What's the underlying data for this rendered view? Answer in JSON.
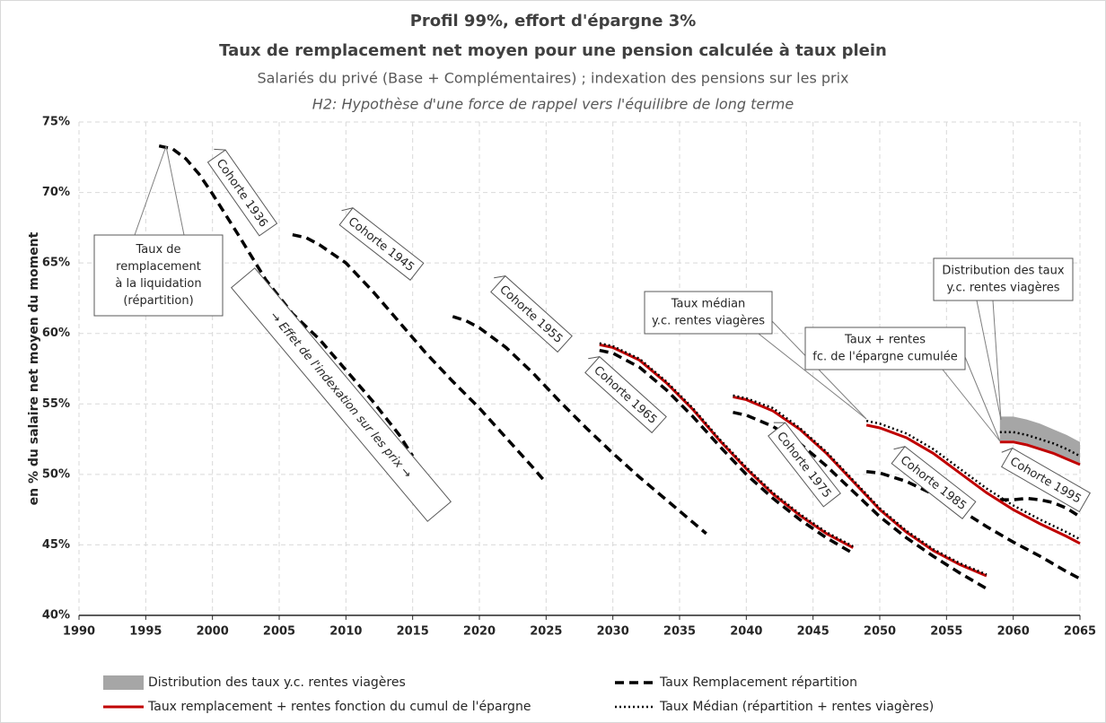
{
  "chart_data": {
    "type": "line",
    "title": "Profil 99%, effort d'épargne 3%",
    "subtitle": "Taux de remplacement net moyen pour une pension calculée à taux plein",
    "subtitle2": "Salariés du privé (Base + Complémentaires) ; indexation des pensions sur les prix",
    "subtitle3": "H2: Hypothèse d'une force de rappel vers l'équilibre de long terme",
    "ylabel": "en % du salaire net moyen du moment",
    "xlim": [
      1990,
      2065
    ],
    "xticks": [
      1990,
      1995,
      2000,
      2005,
      2010,
      2015,
      2020,
      2025,
      2030,
      2035,
      2040,
      2045,
      2050,
      2055,
      2060,
      2065
    ],
    "ylim": [
      40,
      75
    ],
    "yticks": [
      {
        "value": 40,
        "label": "40%"
      },
      {
        "value": 45,
        "label": "45%"
      },
      {
        "value": 50,
        "label": "50%"
      },
      {
        "value": 55,
        "label": "55%"
      },
      {
        "value": 60,
        "label": "60%"
      },
      {
        "value": 65,
        "label": "65%"
      },
      {
        "value": 70,
        "label": "70%"
      },
      {
        "value": 75,
        "label": "75%"
      }
    ],
    "grid": true,
    "legend": "bottom",
    "series": [
      {
        "name": "Distribution des taux y.c. rentes viagères",
        "color": "#a6a6a6",
        "style": "band",
        "segments": [
          {
            "x": [
              2059,
              2060,
              2061,
              2062,
              2063,
              2064,
              2065
            ],
            "low": [
              52.4,
              52.4,
              52.2,
              51.9,
              51.6,
              51.2,
              50.8
            ],
            "high": [
              54.1,
              54.1,
              53.9,
              53.6,
              53.2,
              52.8,
              52.3
            ]
          }
        ]
      },
      {
        "name": "Taux Remplacement répartition",
        "color": "#000000",
        "style": "dashed",
        "segments": [
          {
            "x": [
              1996,
              1997,
              1998,
              1999,
              2000,
              2002,
              2004,
              2006,
              2008,
              2010,
              2012,
              2014,
              2015
            ],
            "values": [
              73.3,
              73.1,
              72.4,
              71.3,
              69.9,
              66.9,
              63.8,
              61.4,
              59.6,
              57.4,
              55.2,
              52.8,
              51.3
            ]
          },
          {
            "x": [
              2006,
              2007,
              2008,
              2010,
              2012,
              2014,
              2016,
              2018,
              2020,
              2022,
              2024,
              2025
            ],
            "values": [
              67.0,
              66.8,
              66.3,
              65.0,
              63.0,
              60.8,
              58.6,
              56.6,
              54.7,
              52.6,
              50.5,
              49.4
            ]
          },
          {
            "x": [
              2018,
              2019,
              2020,
              2022,
              2024,
              2026,
              2028,
              2030,
              2032,
              2034,
              2036,
              2037
            ],
            "values": [
              61.2,
              60.9,
              60.4,
              59.0,
              57.2,
              55.2,
              53.3,
              51.5,
              49.8,
              48.2,
              46.6,
              45.8
            ]
          },
          {
            "x": [
              2029,
              2030,
              2032,
              2034,
              2036,
              2038,
              2040,
              2042,
              2044,
              2046,
              2048
            ],
            "values": [
              58.8,
              58.6,
              57.6,
              56.0,
              54.1,
              52.0,
              50.0,
              48.3,
              46.8,
              45.5,
              44.4
            ]
          },
          {
            "x": [
              2039,
              2040,
              2042,
              2044,
              2046,
              2048,
              2050,
              2052,
              2054,
              2056,
              2058
            ],
            "values": [
              54.4,
              54.2,
              53.4,
              52.2,
              50.6,
              48.8,
              47.0,
              45.5,
              44.2,
              43.0,
              41.9
            ]
          },
          {
            "x": [
              2049,
              2050,
              2052,
              2054,
              2056,
              2058,
              2060,
              2062,
              2064,
              2065
            ],
            "values": [
              50.2,
              50.1,
              49.5,
              48.6,
              47.5,
              46.3,
              45.2,
              44.2,
              43.1,
              42.6
            ]
          },
          {
            "x": [
              2059,
              2060,
              2061,
              2062,
              2063,
              2064,
              2065
            ],
            "values": [
              48.2,
              48.2,
              48.3,
              48.2,
              48.0,
              47.6,
              47.0
            ]
          }
        ]
      },
      {
        "name": "Taux remplacement + rentes fonction du cumul de l'épargne",
        "color": "#c00000",
        "style": "solid",
        "segments": [
          {
            "x": [
              2029,
              2030,
              2032,
              2034,
              2036,
              2038,
              2040,
              2042,
              2044,
              2046,
              2048
            ],
            "values": [
              59.2,
              59.0,
              58.1,
              56.5,
              54.6,
              52.4,
              50.4,
              48.6,
              47.1,
              45.8,
              44.8
            ]
          },
          {
            "x": [
              2039,
              2040,
              2042,
              2044,
              2046,
              2048,
              2050,
              2052,
              2054,
              2056,
              2058
            ],
            "values": [
              55.5,
              55.3,
              54.5,
              53.2,
              51.5,
              49.5,
              47.5,
              45.9,
              44.6,
              43.6,
              42.8
            ]
          },
          {
            "x": [
              2049,
              2050,
              2052,
              2054,
              2056,
              2058,
              2060,
              2062,
              2064,
              2065
            ],
            "values": [
              53.5,
              53.3,
              52.6,
              51.5,
              50.1,
              48.7,
              47.5,
              46.5,
              45.6,
              45.1
            ]
          },
          {
            "x": [
              2059,
              2060,
              2061,
              2062,
              2063,
              2064,
              2065
            ],
            "values": [
              52.3,
              52.3,
              52.1,
              51.8,
              51.5,
              51.1,
              50.7
            ]
          }
        ]
      },
      {
        "name": "Taux Médian (répartition + rentes viagères)",
        "color": "#000000",
        "style": "dotted",
        "segments": [
          {
            "x": [
              2029,
              2030,
              2032,
              2034,
              2036,
              2038,
              2040,
              2042,
              2044,
              2046,
              2048
            ],
            "values": [
              59.3,
              59.1,
              58.2,
              56.6,
              54.7,
              52.5,
              50.5,
              48.7,
              47.2,
              45.9,
              44.9
            ]
          },
          {
            "x": [
              2039,
              2040,
              2042,
              2044,
              2046,
              2048,
              2050,
              2052,
              2054,
              2056,
              2058
            ],
            "values": [
              55.6,
              55.4,
              54.7,
              53.3,
              51.6,
              49.6,
              47.6,
              46.0,
              44.7,
              43.7,
              42.9
            ]
          },
          {
            "x": [
              2049,
              2050,
              2052,
              2054,
              2056,
              2058,
              2060,
              2062,
              2064,
              2065
            ],
            "values": [
              53.8,
              53.6,
              52.9,
              51.8,
              50.4,
              49.0,
              47.8,
              46.8,
              45.9,
              45.4
            ]
          },
          {
            "x": [
              2059,
              2060,
              2061,
              2062,
              2063,
              2064,
              2065
            ],
            "values": [
              53.0,
              53.0,
              52.8,
              52.5,
              52.2,
              51.8,
              51.3
            ]
          }
        ]
      }
    ],
    "cohort_labels": [
      "Cohorte 1936",
      "Cohorte 1945",
      "Cohorte 1955",
      "Cohorte 1965",
      "Cohorte 1975",
      "Cohorte 1985",
      "Cohorte 1995"
    ],
    "arrow_note": "→ Effet de l'indexation sur les prix →",
    "callouts": [
      [
        "Taux de",
        "remplacement",
        "à la liquidation",
        "(répartition)"
      ],
      [
        "Taux médian",
        "y.c. rentes viagères"
      ],
      [
        "Taux + rentes",
        "fc. de l'épargne cumulée"
      ],
      [
        "Distribution des taux",
        "y.c. rentes viagères"
      ]
    ]
  }
}
